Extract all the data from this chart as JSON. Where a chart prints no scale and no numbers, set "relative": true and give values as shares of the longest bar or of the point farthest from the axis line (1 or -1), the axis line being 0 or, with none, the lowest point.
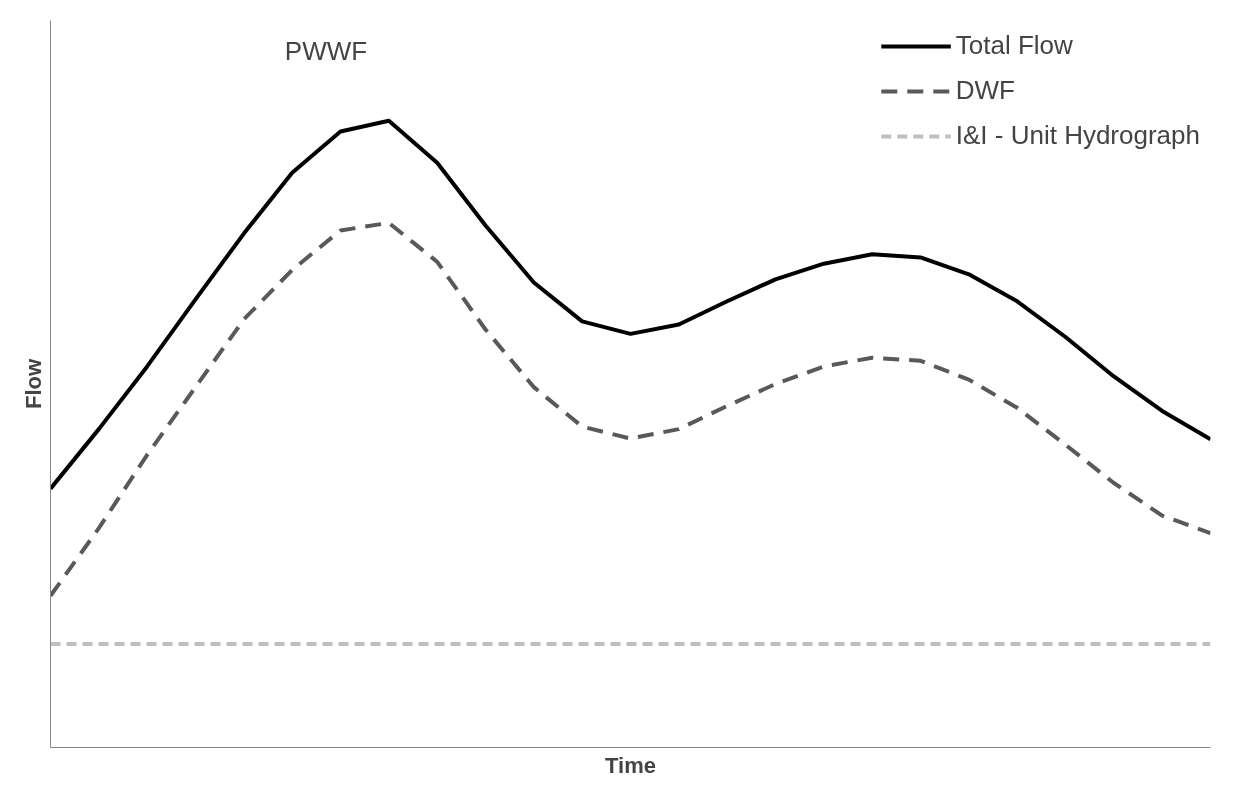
{
  "chart_data": {
    "type": "line",
    "relative": true,
    "xlabel": "Time",
    "ylabel": "Flow",
    "legend": "top right",
    "marker": "none",
    "tick_labels": false,
    "categories": [
      null,
      null,
      null,
      null,
      null,
      null,
      null,
      null,
      null,
      null,
      null,
      null,
      null,
      null,
      null,
      null,
      null,
      null,
      null,
      null,
      null,
      null,
      null,
      null,
      null
    ],
    "series": [
      {
        "name": "Total Flow",
        "color": "#000000",
        "line_style": "solid",
        "values": [
          0.413,
          0.508,
          0.608,
          0.715,
          0.82,
          0.917,
          0.983,
          1,
          0.933,
          0.833,
          0.742,
          0.68,
          0.66,
          0.675,
          0.712,
          0.747,
          0.772,
          0.787,
          0.782,
          0.755,
          0.712,
          0.655,
          0.592,
          0.537,
          0.492
        ]
      },
      {
        "name": "DWF",
        "color": "#595959",
        "line_style": "dashed",
        "values": [
          0.242,
          0.35,
          0.467,
          0.575,
          0.683,
          0.762,
          0.825,
          0.837,
          0.775,
          0.667,
          0.575,
          0.512,
          0.493,
          0.508,
          0.545,
          0.58,
          0.608,
          0.622,
          0.617,
          0.587,
          0.542,
          0.483,
          0.422,
          0.37,
          0.342
        ]
      },
      {
        "name": "I&I - Unit Hydrograph",
        "color": "#bfbfbf",
        "line_style": "dotted",
        "values": [
          0.165,
          0.165,
          0.165,
          0.165,
          0.165,
          0.165,
          0.165,
          0.165,
          0.165,
          0.165,
          0.165,
          0.165,
          0.165,
          0.165,
          0.165,
          0.165,
          0.165,
          0.165,
          0.165,
          0.165,
          0.165,
          0.165,
          0.165,
          0.165,
          0.165
        ]
      }
    ],
    "annotations": [
      "PWWF"
    ]
  }
}
